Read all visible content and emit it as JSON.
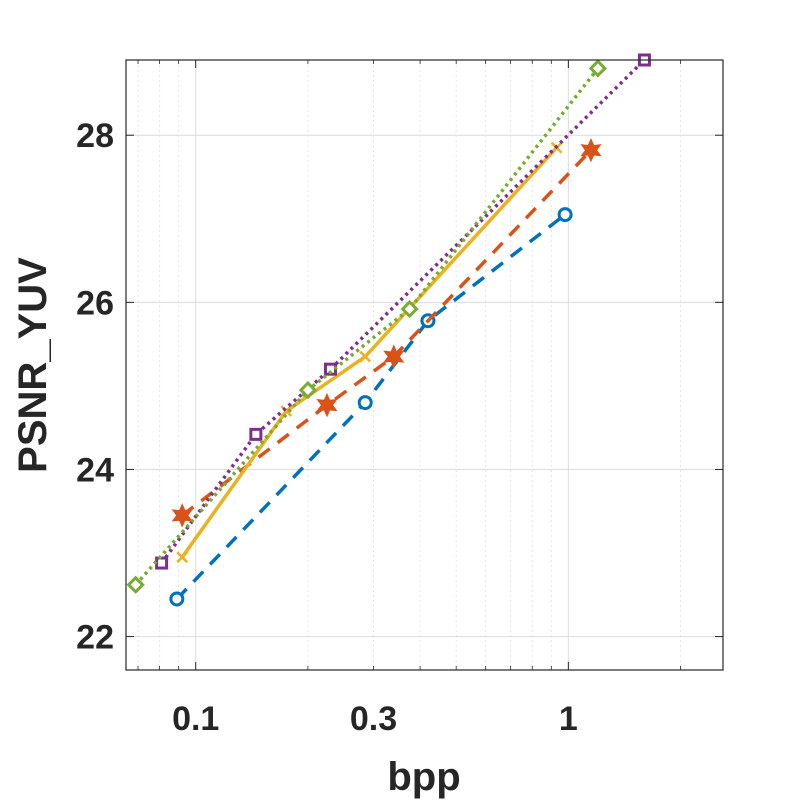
{
  "chart_data": {
    "type": "line",
    "xlabel": "bpp",
    "ylabel": "PSNR_YUV",
    "xscale": "log",
    "xlim": [
      0.065,
      2.6
    ],
    "ylim": [
      21.6,
      28.9
    ],
    "xticks": [
      0.1,
      0.3,
      1
    ],
    "xtick_labels": [
      "0.1",
      "0.3",
      "1"
    ],
    "yticks": [
      22,
      24,
      26,
      28
    ],
    "ytick_labels": [
      "22",
      "24",
      "26",
      "28"
    ],
    "grid": true,
    "legend": "none",
    "series": [
      {
        "color": "#0072BD",
        "linestyle": "dashed",
        "marker": "circle",
        "x": [
          0.089,
          0.285,
          0.42,
          0.98
        ],
        "y": [
          22.45,
          24.8,
          25.78,
          27.05
        ]
      },
      {
        "color": "#D95319",
        "linestyle": "dashed",
        "marker": "hexagram",
        "x": [
          0.092,
          0.225,
          0.34,
          1.15
        ],
        "y": [
          23.45,
          24.77,
          25.35,
          27.82
        ]
      },
      {
        "color": "#EDB120",
        "linestyle": "solid",
        "marker": "x",
        "x": [
          0.092,
          0.175,
          0.285,
          0.93
        ],
        "y": [
          22.95,
          24.7,
          25.35,
          27.85
        ]
      },
      {
        "color": "#7E2F8E",
        "linestyle": "dotted",
        "marker": "square",
        "x": [
          0.081,
          0.145,
          0.23,
          1.6
        ],
        "y": [
          22.88,
          24.42,
          25.2,
          28.9
        ]
      },
      {
        "color": "#77AC30",
        "linestyle": "dotted",
        "marker": "diamond",
        "x": [
          0.069,
          0.2,
          0.375,
          1.2
        ],
        "y": [
          22.62,
          24.95,
          25.92,
          28.8
        ]
      }
    ]
  }
}
